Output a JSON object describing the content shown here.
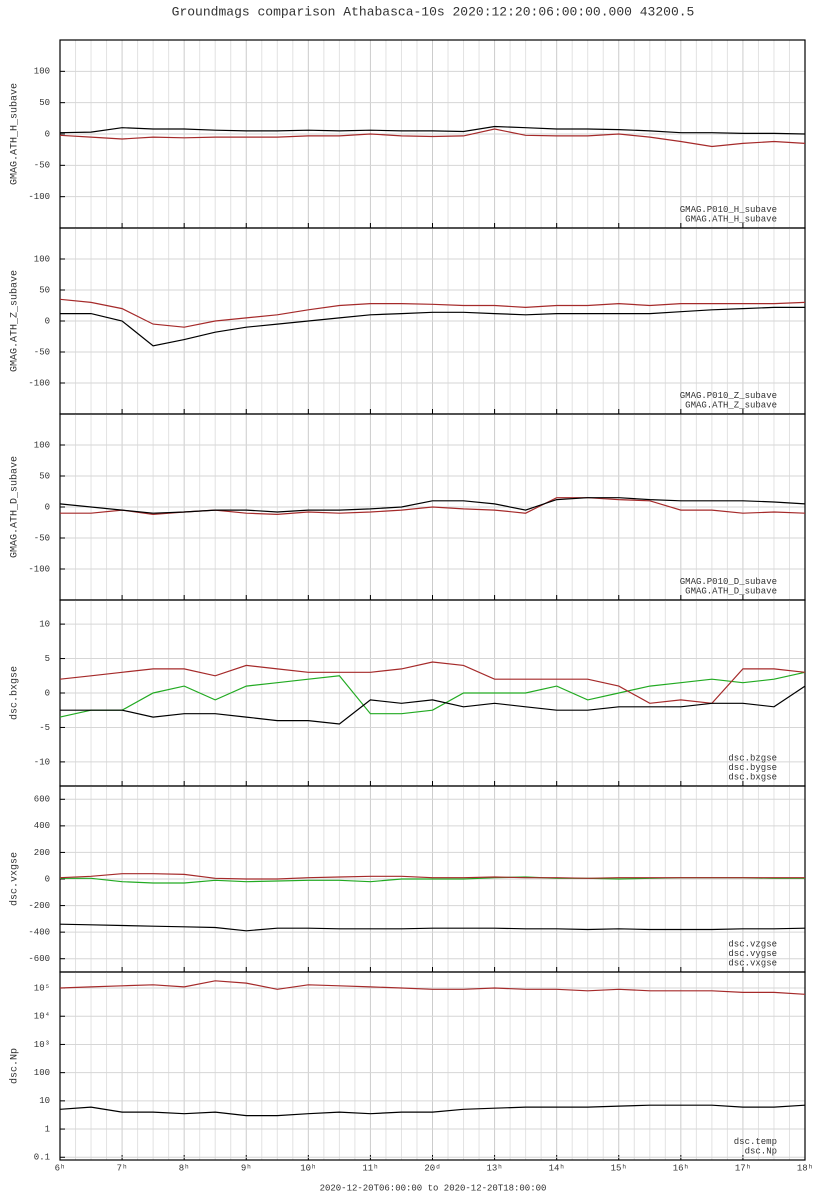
{
  "title": "Groundmags comparison Athabasca-10s 2020:12:20:06:00:00.000 43200.5",
  "chart_data": [
    {
      "type": "line",
      "ylabel": "GMAG.ATH_H_subave",
      "legend": "lower right",
      "grid": true,
      "minor_xticks_per_major": 4,
      "x": [
        6,
        6.5,
        7,
        7.5,
        8,
        8.5,
        9,
        9.5,
        10,
        10.5,
        11,
        11.5,
        12,
        12.5,
        13,
        13.5,
        14,
        14.5,
        15,
        15.5,
        16,
        16.5,
        17,
        17.5,
        18
      ],
      "xlim": [
        6,
        18
      ],
      "xticks": [
        6,
        7,
        8,
        9,
        10,
        11,
        12,
        13,
        14,
        15,
        16,
        17,
        18
      ],
      "ylim": [
        -150,
        150
      ],
      "yticks": [
        -100,
        -50,
        0,
        50,
        100
      ],
      "series": [
        {
          "name": "GMAG.P010_H_subave",
          "color": "#a52a2a",
          "values": [
            -2,
            -5,
            -8,
            -5,
            -6,
            -5,
            -5,
            -5,
            -3,
            -3,
            0,
            -3,
            -4,
            -3,
            8,
            -2,
            -3,
            -3,
            0,
            -5,
            -12,
            -20,
            -15,
            -12,
            -15
          ]
        },
        {
          "name": "GMAG.ATH_H_subave",
          "color": "#000000",
          "values": [
            2,
            3,
            10,
            8,
            8,
            6,
            5,
            5,
            6,
            5,
            6,
            5,
            5,
            4,
            12,
            10,
            8,
            8,
            7,
            5,
            2,
            2,
            1,
            1,
            0
          ]
        }
      ]
    },
    {
      "type": "line",
      "ylabel": "GMAG.ATH_Z_subave",
      "legend": "lower right",
      "grid": true,
      "minor_xticks_per_major": 4,
      "x": [
        6,
        6.5,
        7,
        7.5,
        8,
        8.5,
        9,
        9.5,
        10,
        10.5,
        11,
        11.5,
        12,
        12.5,
        13,
        13.5,
        14,
        14.5,
        15,
        15.5,
        16,
        16.5,
        17,
        17.5,
        18
      ],
      "xlim": [
        6,
        18
      ],
      "xticks": [
        6,
        7,
        8,
        9,
        10,
        11,
        12,
        13,
        14,
        15,
        16,
        17,
        18
      ],
      "ylim": [
        -150,
        150
      ],
      "yticks": [
        -100,
        -50,
        0,
        50,
        100
      ],
      "series": [
        {
          "name": "GMAG.P010_Z_subave",
          "color": "#a52a2a",
          "values": [
            35,
            30,
            20,
            -5,
            -10,
            0,
            5,
            10,
            18,
            25,
            28,
            28,
            27,
            25,
            25,
            22,
            25,
            25,
            28,
            25,
            28,
            28,
            28,
            28,
            30
          ]
        },
        {
          "name": "GMAG.ATH_Z_subave",
          "color": "#000000",
          "values": [
            12,
            12,
            0,
            -40,
            -30,
            -18,
            -10,
            -5,
            0,
            5,
            10,
            12,
            14,
            14,
            12,
            10,
            12,
            12,
            12,
            12,
            15,
            18,
            20,
            22,
            22
          ]
        }
      ]
    },
    {
      "type": "line",
      "ylabel": "GMAG.ATH_D_subave",
      "legend": "lower right",
      "grid": true,
      "minor_xticks_per_major": 4,
      "x": [
        6,
        6.5,
        7,
        7.5,
        8,
        8.5,
        9,
        9.5,
        10,
        10.5,
        11,
        11.5,
        12,
        12.5,
        13,
        13.5,
        14,
        14.5,
        15,
        15.5,
        16,
        16.5,
        17,
        17.5,
        18
      ],
      "xlim": [
        6,
        18
      ],
      "xticks": [
        6,
        7,
        8,
        9,
        10,
        11,
        12,
        13,
        14,
        15,
        16,
        17,
        18
      ],
      "ylim": [
        -150,
        150
      ],
      "yticks": [
        -100,
        -50,
        0,
        50,
        100
      ],
      "series": [
        {
          "name": "GMAG.P010_D_subave",
          "color": "#a52a2a",
          "values": [
            -10,
            -10,
            -5,
            -12,
            -8,
            -5,
            -10,
            -12,
            -8,
            -10,
            -8,
            -5,
            0,
            -3,
            -5,
            -10,
            15,
            15,
            12,
            10,
            -5,
            -5,
            -10,
            -8,
            -10
          ]
        },
        {
          "name": "GMAG.ATH_D_subave",
          "color": "#000000",
          "values": [
            5,
            0,
            -5,
            -10,
            -8,
            -5,
            -5,
            -8,
            -5,
            -5,
            -3,
            0,
            10,
            10,
            5,
            -5,
            12,
            15,
            15,
            12,
            10,
            10,
            10,
            8,
            5
          ]
        }
      ]
    },
    {
      "type": "line",
      "ylabel": "dsc.bxgse",
      "legend": "lower right",
      "grid": true,
      "minor_xticks_per_major": 4,
      "x": [
        6,
        6.5,
        7,
        7.5,
        8,
        8.5,
        9,
        9.5,
        10,
        10.5,
        11,
        11.5,
        12,
        12.5,
        13,
        13.5,
        14,
        14.5,
        15,
        15.5,
        16,
        16.5,
        17,
        17.5,
        18
      ],
      "xlim": [
        6,
        18
      ],
      "xticks": [
        6,
        7,
        8,
        9,
        10,
        11,
        12,
        13,
        14,
        15,
        16,
        17,
        18
      ],
      "ylim": [
        -13.5,
        13.5
      ],
      "yticks": [
        -10,
        -5,
        0,
        5,
        10
      ],
      "series": [
        {
          "name": "dsc.bzgse",
          "color": "#22aa22",
          "values": [
            -3.5,
            -2.5,
            -2.5,
            0,
            1,
            -1,
            1,
            1.5,
            2,
            2.5,
            -3,
            -3,
            -2.5,
            0,
            0,
            0,
            1,
            -1,
            0,
            1,
            1.5,
            2,
            1.5,
            2,
            3
          ]
        },
        {
          "name": "dsc.bygse",
          "color": "#a52a2a",
          "values": [
            2,
            2.5,
            3,
            3.5,
            3.5,
            2.5,
            4,
            3.5,
            3,
            3,
            3,
            3.5,
            4.5,
            4,
            2,
            2,
            2,
            2,
            1,
            -1.5,
            -1,
            -1.5,
            3.5,
            3.5,
            3
          ]
        },
        {
          "name": "dsc.bxgse",
          "color": "#000000",
          "values": [
            -2.5,
            -2.5,
            -2.5,
            -3.5,
            -3,
            -3,
            -3.5,
            -4,
            -4,
            -4.5,
            -1,
            -1.5,
            -1,
            -2,
            -1.5,
            -2,
            -2.5,
            -2.5,
            -2,
            -2,
            -2,
            -1.5,
            -1.5,
            -2,
            1
          ]
        }
      ]
    },
    {
      "type": "line",
      "ylabel": "dsc.vxgse",
      "legend": "lower right",
      "grid": true,
      "minor_xticks_per_major": 4,
      "x": [
        6,
        6.5,
        7,
        7.5,
        8,
        8.5,
        9,
        9.5,
        10,
        10.5,
        11,
        11.5,
        12,
        12.5,
        13,
        13.5,
        14,
        14.5,
        15,
        15.5,
        16,
        16.5,
        17,
        17.5,
        18
      ],
      "xlim": [
        6,
        18
      ],
      "xticks": [
        6,
        7,
        8,
        9,
        10,
        11,
        12,
        13,
        14,
        15,
        16,
        17,
        18
      ],
      "ylim": [
        -700,
        700
      ],
      "yticks": [
        -600,
        -400,
        -200,
        0,
        200,
        400,
        600
      ],
      "series": [
        {
          "name": "dsc.vzgse",
          "color": "#22aa22",
          "values": [
            5,
            5,
            -20,
            -30,
            -30,
            -10,
            -20,
            -15,
            -10,
            -10,
            -20,
            0,
            0,
            0,
            10,
            15,
            5,
            5,
            0,
            5,
            10,
            10,
            10,
            5,
            5
          ]
        },
        {
          "name": "dsc.vygse",
          "color": "#a52a2a",
          "values": [
            10,
            20,
            40,
            40,
            35,
            5,
            0,
            0,
            10,
            15,
            20,
            20,
            10,
            10,
            15,
            10,
            10,
            5,
            10,
            10,
            10,
            10,
            10,
            10,
            10
          ]
        },
        {
          "name": "dsc.vxgse",
          "color": "#000000",
          "values": [
            -340,
            -345,
            -350,
            -355,
            -360,
            -365,
            -390,
            -370,
            -370,
            -375,
            -375,
            -375,
            -370,
            -370,
            -370,
            -375,
            -375,
            -380,
            -375,
            -380,
            -380,
            -380,
            -375,
            -375,
            -370
          ]
        }
      ]
    },
    {
      "type": "line",
      "ylabel": "dsc.Np",
      "legend": "lower right",
      "grid": true,
      "log_y": true,
      "minor_xticks_per_major": 4,
      "x": [
        6,
        6.5,
        7,
        7.5,
        8,
        8.5,
        9,
        9.5,
        10,
        10.5,
        11,
        11.5,
        12,
        12.5,
        13,
        13.5,
        14,
        14.5,
        15,
        15.5,
        16,
        16.5,
        17,
        17.5,
        18
      ],
      "xlim": [
        6,
        18
      ],
      "xticks": [
        {
          "value": 6,
          "label": "6ʰ"
        },
        {
          "value": 7,
          "label": "7ʰ"
        },
        {
          "value": 8,
          "label": "8ʰ"
        },
        {
          "value": 9,
          "label": "9ʰ"
        },
        {
          "value": 10,
          "label": "10ʰ"
        },
        {
          "value": 11,
          "label": "11ʰ"
        },
        {
          "value": 12,
          "label": "20ᵈ"
        },
        {
          "value": 13,
          "label": "13ʰ"
        },
        {
          "value": 14,
          "label": "14ʰ"
        },
        {
          "value": 15,
          "label": "15ʰ"
        },
        {
          "value": 16,
          "label": "16ʰ"
        },
        {
          "value": 17,
          "label": "17ʰ"
        },
        {
          "value": 18,
          "label": "18ʰ"
        }
      ],
      "xlabel": "2020-12-20T06:00:00 to 2020-12-20T18:00:00",
      "ylim": [
        0.08,
        370000
      ],
      "yticks": [
        0.1,
        1,
        10,
        100,
        {
          "value": 1000,
          "label": "10³"
        },
        {
          "value": 10000,
          "label": "10⁴"
        },
        {
          "value": 100000,
          "label": "10⁵"
        }
      ],
      "series": [
        {
          "name": "dsc.temp",
          "color": "#a52a2a",
          "values": [
            100000,
            110000,
            120000,
            130000,
            110000,
            180000,
            150000,
            90000,
            130000,
            120000,
            110000,
            100000,
            90000,
            90000,
            100000,
            90000,
            90000,
            80000,
            90000,
            80000,
            80000,
            80000,
            70000,
            70000,
            60000
          ]
        },
        {
          "name": "dsc.Np",
          "color": "#000000",
          "values": [
            5,
            6,
            4,
            4,
            3.5,
            4,
            3,
            3,
            3.5,
            4,
            3.5,
            4,
            4,
            5,
            5.5,
            6,
            6,
            6,
            6.5,
            7,
            7,
            7,
            6,
            6,
            7
          ]
        }
      ]
    }
  ]
}
